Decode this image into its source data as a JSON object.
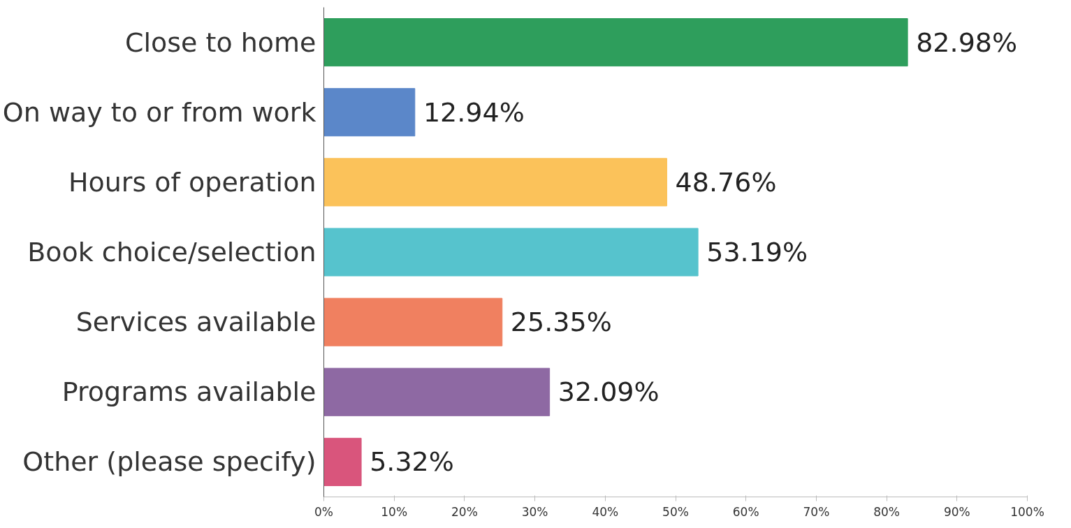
{
  "chart_data": {
    "type": "bar",
    "orientation": "horizontal",
    "categories": [
      "Close to home",
      "On way to or from work",
      "Hours of operation",
      "Book choice/selection",
      "Services available",
      "Programs available",
      "Other (please specify)"
    ],
    "values": [
      82.98,
      12.94,
      48.76,
      53.19,
      25.35,
      32.09,
      5.32
    ],
    "value_labels": [
      "82.98%",
      "12.94%",
      "48.76%",
      "53.19%",
      "25.35%",
      "32.09%",
      "5.32%"
    ],
    "colors": [
      "#2e9e5c",
      "#5b87c9",
      "#fbc25a",
      "#56c3cd",
      "#f08060",
      "#8e69a3",
      "#d9557c"
    ],
    "xlim": [
      0,
      100
    ],
    "xticks": [
      {
        "value": 0,
        "label": "0%"
      },
      {
        "value": 10,
        "label": "10%"
      },
      {
        "value": 20,
        "label": "20%"
      },
      {
        "value": 30,
        "label": "30%"
      },
      {
        "value": 40,
        "label": "40%"
      },
      {
        "value": 50,
        "label": "50%"
      },
      {
        "value": 60,
        "label": "60%"
      },
      {
        "value": 70,
        "label": "70%"
      },
      {
        "value": 80,
        "label": "80%"
      },
      {
        "value": 90,
        "label": "90%"
      },
      {
        "value": 100,
        "label": "100%"
      }
    ],
    "grid": false
  }
}
